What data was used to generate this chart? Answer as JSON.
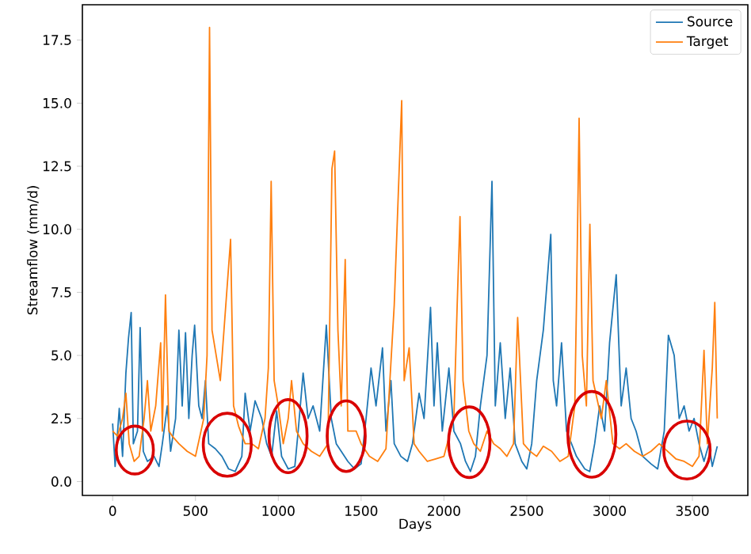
{
  "chart_data": {
    "type": "line",
    "xlabel": "Days",
    "ylabel": "Streamflow (mm/d)",
    "xlim": [
      -182.6,
      3834.6
    ],
    "ylim": [
      -0.55,
      18.9
    ],
    "xticks": [
      0,
      500,
      1000,
      1500,
      2000,
      2500,
      3000,
      3500
    ],
    "yticks": [
      {
        "value": 0,
        "label": "0.0"
      },
      {
        "value": 2.5,
        "label": "2.5"
      },
      {
        "value": 5,
        "label": "5.0"
      },
      {
        "value": 7.5,
        "label": "7.5"
      },
      {
        "value": 10,
        "label": "10.0"
      },
      {
        "value": 12.5,
        "label": "12.5"
      },
      {
        "value": 15,
        "label": "15.0"
      },
      {
        "value": 17.5,
        "label": "17.5"
      }
    ],
    "legend": "top right",
    "grid": false,
    "line_style": "solid",
    "marker": "none",
    "series": [
      {
        "name": "Source",
        "color": "#1f77b4",
        "x": [
          0,
          15,
          40,
          60,
          80,
          96,
          112,
          125,
          150,
          166,
          185,
          210,
          250,
          280,
          300,
          330,
          350,
          380,
          400,
          420,
          440,
          460,
          480,
          495,
          520,
          540,
          560,
          580,
          620,
          660,
          700,
          740,
          780,
          800,
          830,
          860,
          900,
          930,
          960,
          990,
          1020,
          1060,
          1100,
          1120,
          1150,
          1180,
          1210,
          1250,
          1290,
          1320,
          1350,
          1380,
          1420,
          1460,
          1500,
          1530,
          1560,
          1590,
          1629,
          1650,
          1680,
          1700,
          1740,
          1780,
          1810,
          1850,
          1880,
          1919,
          1940,
          1960,
          1990,
          2030,
          2060,
          2100,
          2130,
          2160,
          2190,
          2220,
          2260,
          2290,
          2310,
          2340,
          2370,
          2400,
          2430,
          2470,
          2500,
          2530,
          2560,
          2600,
          2645,
          2660,
          2680,
          2710,
          2740,
          2770,
          2800,
          2850,
          2880,
          2910,
          2940,
          2970,
          3000,
          3040,
          3070,
          3100,
          3130,
          3160,
          3200,
          3250,
          3290,
          3330,
          3355,
          3390,
          3420,
          3450,
          3480,
          3510,
          3540,
          3570,
          3600,
          3620,
          3650
        ],
        "values": [
          2.3,
          0.6,
          2.9,
          1.0,
          4.3,
          5.7,
          6.7,
          1.5,
          2.0,
          6.1,
          1.2,
          0.8,
          1.0,
          0.6,
          1.5,
          3.0,
          1.2,
          2.5,
          6.0,
          3.0,
          5.9,
          2.5,
          5.0,
          6.2,
          3.0,
          2.5,
          4.0,
          1.5,
          1.3,
          1.0,
          0.5,
          0.4,
          1.0,
          3.5,
          2.0,
          3.2,
          2.5,
          1.5,
          1.0,
          2.8,
          1.0,
          0.5,
          0.6,
          2.0,
          4.3,
          2.5,
          3.0,
          2.0,
          6.2,
          2.5,
          1.5,
          1.2,
          0.8,
          0.5,
          0.7,
          2.5,
          4.5,
          3.0,
          5.3,
          2.0,
          4.0,
          1.5,
          1.0,
          0.8,
          1.5,
          3.5,
          2.5,
          6.9,
          3.0,
          5.5,
          2.0,
          4.5,
          2.0,
          1.5,
          0.8,
          0.4,
          1.0,
          3.0,
          5.0,
          11.9,
          3.0,
          5.5,
          2.5,
          4.5,
          1.5,
          0.8,
          0.5,
          1.5,
          4.0,
          6.0,
          9.8,
          4.0,
          3.0,
          5.5,
          2.0,
          1.5,
          1.0,
          0.5,
          0.4,
          1.5,
          3.0,
          2.0,
          5.5,
          8.2,
          3.0,
          4.5,
          2.5,
          2.0,
          1.0,
          0.7,
          0.5,
          2.0,
          5.8,
          5.0,
          2.5,
          3.0,
          2.0,
          2.5,
          1.5,
          0.8,
          1.5,
          0.6,
          1.4
        ]
      },
      {
        "name": "Target",
        "color": "#ff7f0e",
        "x": [
          0,
          30,
          60,
          80,
          100,
          130,
          160,
          190,
          210,
          230,
          260,
          290,
          300,
          319,
          340,
          360,
          400,
          450,
          500,
          550,
          570,
          585,
          600,
          650,
          712,
          730,
          760,
          800,
          840,
          880,
          920,
          940,
          957,
          975,
          1000,
          1030,
          1060,
          1080,
          1110,
          1150,
          1200,
          1250,
          1300,
          1324,
          1340,
          1360,
          1380,
          1404,
          1420,
          1470,
          1500,
          1550,
          1600,
          1650,
          1700,
          1745,
          1760,
          1790,
          1820,
          1850,
          1900,
          1950,
          2000,
          2060,
          2080,
          2097,
          2115,
          2150,
          2180,
          2220,
          2260,
          2300,
          2340,
          2380,
          2420,
          2445,
          2480,
          2520,
          2560,
          2600,
          2650,
          2700,
          2750,
          2790,
          2800,
          2816,
          2835,
          2860,
          2881,
          2900,
          2950,
          2980,
          3020,
          3060,
          3100,
          3150,
          3200,
          3250,
          3300,
          3350,
          3400,
          3450,
          3500,
          3540,
          3570,
          3590,
          3620,
          3635,
          3650
        ],
        "values": [
          2.0,
          1.8,
          2.5,
          3.5,
          1.5,
          0.8,
          1.0,
          2.5,
          4.0,
          2.0,
          3.0,
          5.5,
          2.0,
          7.4,
          2.0,
          1.8,
          1.5,
          1.2,
          1.0,
          2.5,
          5.0,
          18.0,
          6.0,
          4.0,
          9.6,
          3.0,
          2.2,
          1.5,
          1.5,
          1.3,
          2.5,
          4.5,
          11.9,
          4.0,
          3.0,
          1.5,
          2.5,
          4.0,
          2.0,
          1.5,
          1.2,
          1.0,
          1.5,
          12.4,
          13.1,
          6.0,
          3.0,
          8.8,
          2.0,
          2.0,
          1.5,
          1.0,
          0.8,
          1.3,
          7.0,
          15.1,
          4.0,
          5.3,
          1.5,
          1.2,
          0.8,
          0.9,
          1.0,
          2.5,
          7.0,
          10.5,
          4.0,
          2.0,
          1.5,
          1.2,
          2.0,
          1.5,
          1.3,
          1.0,
          1.5,
          6.5,
          1.5,
          1.2,
          1.0,
          1.4,
          1.2,
          0.8,
          1.0,
          3.0,
          7.0,
          14.4,
          5.0,
          3.0,
          10.2,
          4.0,
          2.5,
          4.0,
          1.5,
          1.3,
          1.5,
          1.2,
          1.0,
          1.2,
          1.5,
          1.2,
          0.9,
          0.8,
          0.6,
          1.0,
          5.2,
          1.5,
          4.5,
          7.1,
          2.5
        ]
      }
    ]
  }
}
